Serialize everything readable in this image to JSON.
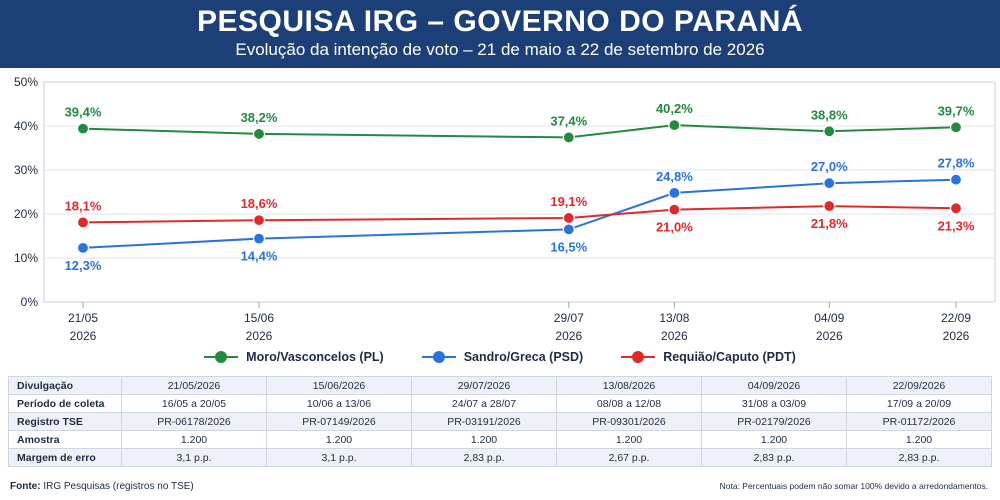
{
  "header": {
    "title": "PESQUISA IRG – GOVERNO DO PARANÁ",
    "subtitle": "Evolução da intenção de voto – 21 de maio a 22 de setembro de 2026"
  },
  "chart_data": {
    "type": "line",
    "title": "PESQUISA IRG – GOVERNO DO PARANÁ",
    "subtitle": "Evolução da intenção de voto – 21 de maio a 22 de setembro de 2026",
    "x": [
      "2026-05-21",
      "2026-06-15",
      "2026-07-29",
      "2026-08-13",
      "2026-09-04",
      "2026-09-22"
    ],
    "x_tick_labels": [
      [
        "21/05",
        "2026"
      ],
      [
        "15/06",
        "2026"
      ],
      [
        "29/07",
        "2026"
      ],
      [
        "13/08",
        "2026"
      ],
      [
        "04/09",
        "2026"
      ],
      [
        "22/09",
        "2026"
      ]
    ],
    "y_tick_labels": [
      "0%",
      "10%",
      "20%",
      "30%",
      "40%",
      "50%"
    ],
    "ylim": [
      0,
      50
    ],
    "grid": true,
    "legend_position": "bottom",
    "series": [
      {
        "name": "Moro/Vasconcelos (PL)",
        "color": "#238a3f",
        "values": [
          39.4,
          38.2,
          37.4,
          40.2,
          38.8,
          39.7
        ],
        "labels": [
          "39,4%",
          "38,2%",
          "37,4%",
          "40,2%",
          "38,8%",
          "39,7%"
        ]
      },
      {
        "name": "Sandro/Greca (PSD)",
        "color": "#2a73dc",
        "values": [
          12.3,
          14.4,
          16.5,
          24.8,
          27.0,
          27.8
        ],
        "labels": [
          "12,3%",
          "14,4%",
          "16,5%",
          "24,8%",
          "27,0%",
          "27,8%"
        ]
      },
      {
        "name": "Requião/Caputo (PDT)",
        "color": "#e02a2a",
        "values": [
          18.1,
          18.6,
          19.1,
          21.0,
          21.8,
          21.3
        ],
        "labels": [
          "18,1%",
          "18,6%",
          "19,1%",
          "21,0%",
          "21,8%",
          "21,3%"
        ]
      }
    ]
  },
  "table": {
    "rows": [
      {
        "label": "Divulgação",
        "cells": [
          "21/05/2026",
          "15/06/2026",
          "29/07/2026",
          "13/08/2026",
          "04/09/2026",
          "22/09/2026"
        ]
      },
      {
        "label": "Período de coleta",
        "cells": [
          "16/05 a 20/05",
          "10/06 a 13/06",
          "24/07 a 28/07",
          "08/08 a 12/08",
          "31/08 a 03/09",
          "17/09 a 20/09"
        ]
      },
      {
        "label": "Registro TSE",
        "cells": [
          "PR-06178/2026",
          "PR-07149/2026",
          "PR-03191/2026",
          "PR-09301/2026",
          "PR-02179/2026",
          "PR-01172/2026"
        ]
      },
      {
        "label": "Amostra",
        "cells": [
          "1.200",
          "1.200",
          "1.200",
          "1.200",
          "1.200",
          "1.200"
        ]
      },
      {
        "label": "Margem de erro",
        "cells": [
          "3,1 p.p.",
          "3,1 p.p.",
          "2,83 p.p.",
          "2,67 p.p.",
          "2,83 p.p.",
          "2,83 p.p."
        ]
      }
    ]
  },
  "footer": {
    "source_label": "Fonte:",
    "source_text": " IRG Pesquisas (registros no TSE)",
    "note": "Nota: Percentuais podem não somar 100% devido a arredondamentos."
  }
}
